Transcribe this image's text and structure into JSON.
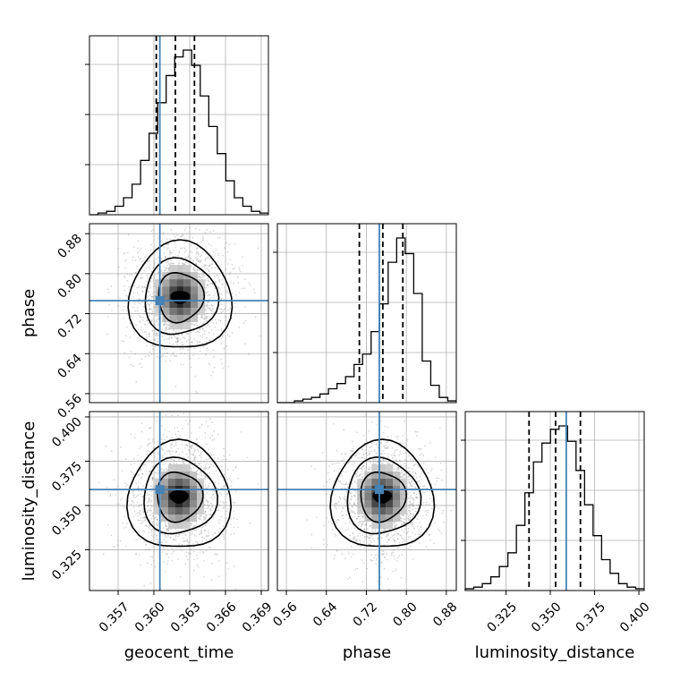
{
  "chart_data": {
    "type": "corner",
    "parameters": [
      "geocent_time",
      "phase",
      "luminosity_distance"
    ],
    "truths": {
      "geocent_time": 0.3605,
      "phase": 0.746,
      "luminosity_distance": 0.359
    },
    "quantiles": {
      "geocent_time": [
        0.3602,
        0.3618,
        0.3634
      ],
      "phase": [
        0.706,
        0.753,
        0.793
      ],
      "luminosity_distance": [
        0.338,
        0.353,
        0.367
      ]
    },
    "ranges": {
      "geocent_time": [
        0.3546,
        0.3696
      ],
      "phase": [
        0.542,
        0.9
      ],
      "luminosity_distance": [
        0.302,
        0.403
      ]
    },
    "ticks": {
      "geocent_time": [
        "0.357",
        "0.360",
        "0.363",
        "0.366",
        "0.369"
      ],
      "phase": [
        "0.56",
        "0.64",
        "0.72",
        "0.80",
        "0.88"
      ],
      "luminosity_distance": [
        "0.325",
        "0.350",
        "0.375",
        "0.400"
      ]
    },
    "histograms": {
      "geocent_time": {
        "bins": [
          0.3546,
          0.3696
        ],
        "counts": [
          0,
          1,
          2,
          5,
          10,
          18,
          32,
          48,
          66,
          82,
          93,
          97,
          88,
          70,
          52,
          36,
          20,
          10,
          5,
          2,
          1
        ]
      },
      "phase": {
        "bins": [
          0.542,
          0.9
        ],
        "counts": [
          0,
          0,
          1,
          2,
          3,
          5,
          8,
          11,
          15,
          22,
          28,
          41,
          57,
          81,
          95,
          86,
          63,
          24,
          10,
          3,
          1
        ]
      },
      "luminosity_distance": {
        "bins": [
          0.302,
          0.403
        ],
        "counts": [
          1,
          2,
          4,
          8,
          14,
          22,
          38,
          57,
          75,
          86,
          94,
          96,
          87,
          70,
          50,
          32,
          18,
          10,
          4,
          2,
          1
        ]
      }
    },
    "pair_centers": {
      "phase_vs_geocent_time": [
        0.3622,
        0.753
      ],
      "luminosity_distance_vs_geocent_time": [
        0.3621,
        0.355
      ],
      "luminosity_distance_vs_phase": [
        0.752,
        0.355
      ]
    },
    "colors": {
      "truth": "#4682b4",
      "hist": "#000000",
      "grid": "#b0b0b0",
      "points": "#9a9a9a"
    },
    "grid": true
  }
}
